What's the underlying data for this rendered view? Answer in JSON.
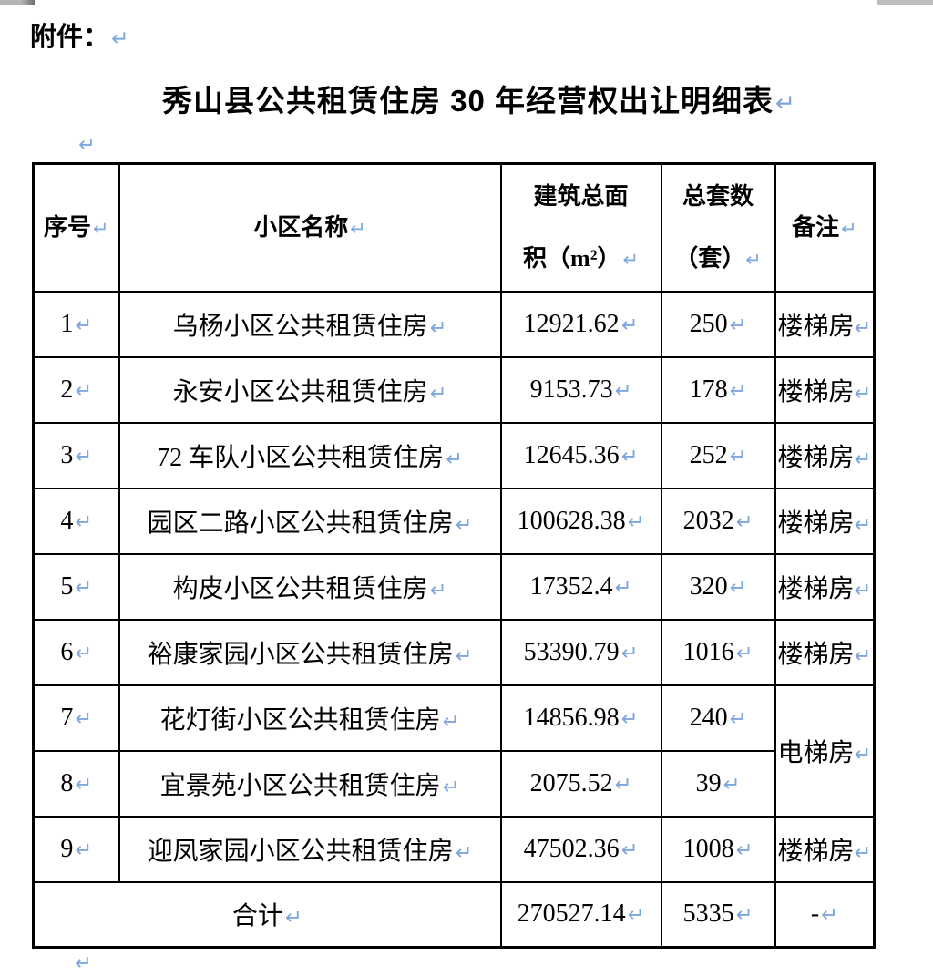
{
  "marks": {
    "paragraph": "↵"
  },
  "page": {
    "attachment_label": "附件：",
    "title": "秀山县公共租赁住房 30 年经营权出让明细表"
  },
  "colors": {
    "paragraph_mark_blue": "#7EA7DE",
    "text": "#000000",
    "background": "#ffffff"
  },
  "table": {
    "headers": {
      "index": "序号",
      "name": "小区名称",
      "area_line1": "建筑总面",
      "area_line2": "积（m²）",
      "units_line1": "总套数",
      "units_line2": "（套）",
      "remark": "备注"
    },
    "rows": [
      {
        "index": "1",
        "name": "乌杨小区公共租赁住房",
        "area": "12921.62",
        "units": "250",
        "remark": "楼梯房"
      },
      {
        "index": "2",
        "name": "永安小区公共租赁住房",
        "area": "9153.73",
        "units": "178",
        "remark": "楼梯房"
      },
      {
        "index": "3",
        "name": "72 车队小区公共租赁住房",
        "area": "12645.36",
        "units": "252",
        "remark": "楼梯房"
      },
      {
        "index": "4",
        "name": "园区二路小区公共租赁住房",
        "area": "100628.38",
        "units": "2032",
        "remark": "楼梯房"
      },
      {
        "index": "5",
        "name": "构皮小区公共租赁住房",
        "area": "17352.4",
        "units": "320",
        "remark": "楼梯房"
      },
      {
        "index": "6",
        "name": "裕康家园小区公共租赁住房",
        "area": "53390.79",
        "units": "1016",
        "remark": "楼梯房"
      },
      {
        "index": "7",
        "name": "花灯街小区公共租赁住房",
        "area": "14856.98",
        "units": "240",
        "remark": "电梯房"
      },
      {
        "index": "8",
        "name": "宜景苑小区公共租赁住房",
        "area": "2075.52",
        "units": "39"
      },
      {
        "index": "9",
        "name": "迎凤家园小区公共租赁住房",
        "area": "47502.36",
        "units": "1008",
        "remark": "楼梯房"
      }
    ],
    "total": {
      "label": "合计",
      "area": "270527.14",
      "units": "5335",
      "remark": "-"
    }
  }
}
